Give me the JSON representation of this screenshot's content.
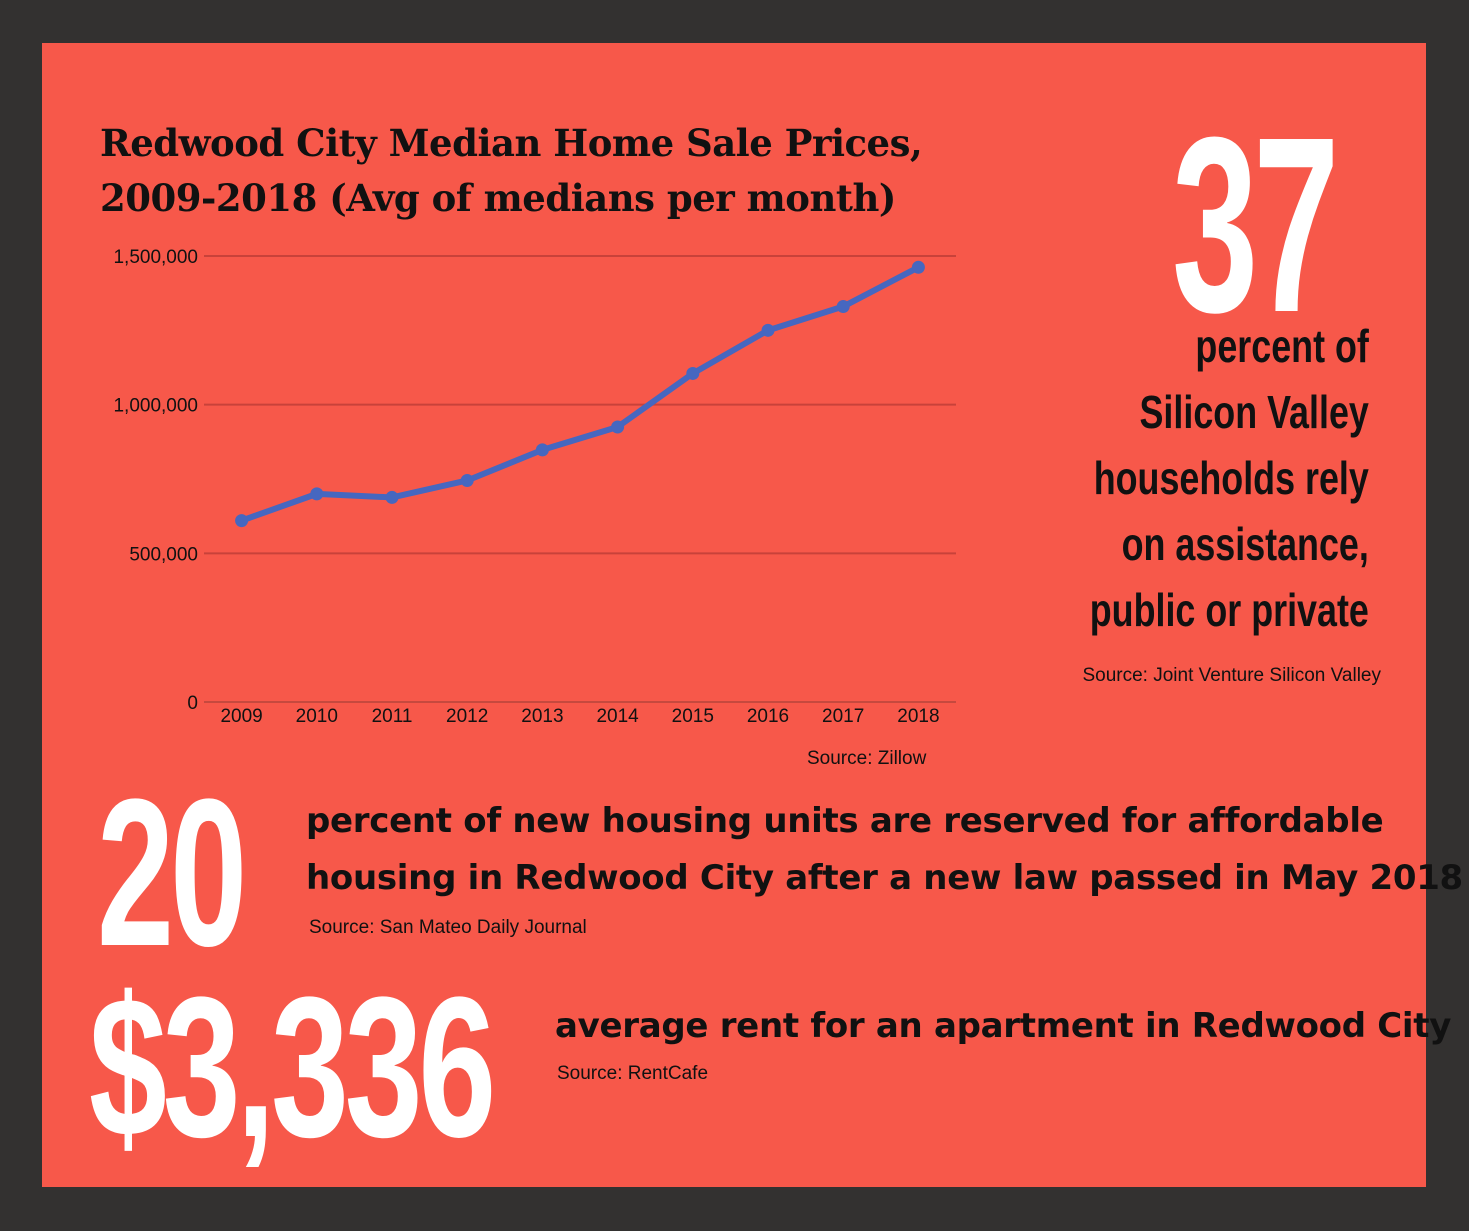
{
  "chart_data": {
    "type": "line",
    "title_lines": [
      "Redwood City Median Home Sale Prices,",
      "2009-2018 (Avg of medians per month)"
    ],
    "categories": [
      "2009",
      "2010",
      "2011",
      "2012",
      "2013",
      "2014",
      "2015",
      "2016",
      "2017",
      "2018"
    ],
    "series": [
      {
        "values": [
          610000,
          700000,
          688000,
          745000,
          848000,
          925000,
          1105000,
          1250000,
          1330000,
          1462000
        ]
      }
    ],
    "ylim": [
      0,
      1500000
    ],
    "yticks": [
      0,
      500000,
      1000000,
      1500000
    ],
    "ytick_labels": [
      "0",
      "500,000",
      "1,000,000",
      "1,500,000"
    ],
    "grid": true,
    "source": "Source: Zillow",
    "colors": {
      "line": "#4667c0",
      "grid": "#c8423a"
    }
  },
  "stats": {
    "stat1": {
      "number": "37",
      "lines": [
        "percent of",
        "Silicon Valley",
        "households rely",
        "on assistance,",
        "public or private"
      ],
      "source": "Source: Joint Venture Silicon Valley"
    },
    "stat2": {
      "number": "20",
      "lines": [
        "percent of new housing units are reserved for affordable",
        "housing in Redwood City after a new law passed in May 2018"
      ],
      "source": "Source: San Mateo Daily Journal"
    },
    "stat3": {
      "number": "$3,336",
      "text": "average rent for an apartment in Redwood City",
      "source": "Source: RentCafe"
    }
  },
  "colors": {
    "background": "#333130",
    "panel": "#f7584a",
    "big_number": "#ffffff",
    "text": "#111111"
  }
}
